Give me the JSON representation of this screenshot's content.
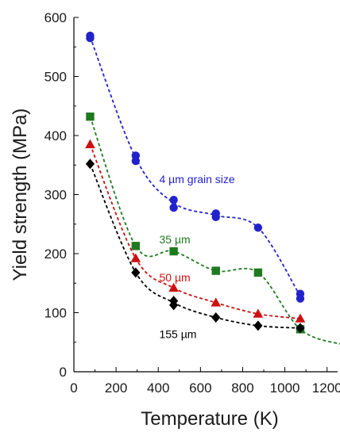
{
  "chart_data": {
    "type": "scatter",
    "title": "",
    "xlabel": "Temperature (K)",
    "ylabel": "Yield strength (MPa)",
    "xlim": [
      0,
      1250
    ],
    "ylim": [
      0,
      600
    ],
    "xticks": [
      0,
      200,
      400,
      600,
      800,
      1000,
      1200
    ],
    "yticks": [
      0,
      100,
      200,
      300,
      400,
      500,
      600
    ],
    "grid": false,
    "legend": "none",
    "series": [
      {
        "name": "4 µm grain size",
        "color": "#2222cc",
        "marker": "circle",
        "points": [
          {
            "x": 77,
            "y": 569
          },
          {
            "x": 77,
            "y": 565
          },
          {
            "x": 293,
            "y": 366
          },
          {
            "x": 293,
            "y": 357
          },
          {
            "x": 473,
            "y": 291
          },
          {
            "x": 473,
            "y": 278
          },
          {
            "x": 673,
            "y": 268
          },
          {
            "x": 673,
            "y": 262
          },
          {
            "x": 873,
            "y": 244
          },
          {
            "x": 1073,
            "y": 132
          },
          {
            "x": 1073,
            "y": 124
          }
        ],
        "curve": [
          [
            77,
            567
          ],
          [
            293,
            362
          ],
          [
            473,
            286
          ],
          [
            673,
            265
          ],
          [
            873,
            244
          ],
          [
            1073,
            128
          ]
        ]
      },
      {
        "name": "35 µm",
        "color": "#1f7a1f",
        "marker": "square",
        "points": [
          {
            "x": 77,
            "y": 432
          },
          {
            "x": 293,
            "y": 213
          },
          {
            "x": 473,
            "y": 204
          },
          {
            "x": 673,
            "y": 171
          },
          {
            "x": 873,
            "y": 168
          },
          {
            "x": 1073,
            "y": 72
          },
          {
            "x": 1273,
            "y": 46
          }
        ],
        "curve": [
          [
            77,
            432
          ],
          [
            293,
            213
          ],
          [
            473,
            204
          ],
          [
            673,
            171
          ],
          [
            873,
            168
          ],
          [
            1073,
            72
          ],
          [
            1273,
            46
          ]
        ]
      },
      {
        "name": "50 µm",
        "color": "#cc1111",
        "marker": "triangle",
        "points": [
          {
            "x": 77,
            "y": 385
          },
          {
            "x": 293,
            "y": 192
          },
          {
            "x": 473,
            "y": 142
          },
          {
            "x": 673,
            "y": 117
          },
          {
            "x": 873,
            "y": 98
          },
          {
            "x": 1073,
            "y": 90
          }
        ],
        "curve": [
          [
            77,
            385
          ],
          [
            293,
            192
          ],
          [
            473,
            142
          ],
          [
            673,
            117
          ],
          [
            873,
            98
          ],
          [
            1073,
            90
          ]
        ]
      },
      {
        "name": "155 µm",
        "color": "#000000",
        "marker": "diamond",
        "points": [
          {
            "x": 77,
            "y": 352
          },
          {
            "x": 293,
            "y": 168
          },
          {
            "x": 473,
            "y": 120
          },
          {
            "x": 473,
            "y": 113
          },
          {
            "x": 673,
            "y": 92
          },
          {
            "x": 873,
            "y": 78
          },
          {
            "x": 1073,
            "y": 74
          }
        ],
        "curve": [
          [
            77,
            352
          ],
          [
            293,
            168
          ],
          [
            473,
            117
          ],
          [
            673,
            92
          ],
          [
            873,
            78
          ],
          [
            1073,
            74
          ]
        ]
      }
    ],
    "annotations": [
      {
        "series": 0,
        "text": "4 µm grain size",
        "x": 480,
        "y": 326,
        "color": "#2222cc"
      },
      {
        "series": 1,
        "text": "35 µm",
        "x": 480,
        "y": 224,
        "color": "#1f7a1f"
      },
      {
        "series": 2,
        "text": "50 µm",
        "x": 480,
        "y": 160,
        "color": "#cc1111"
      },
      {
        "series": 3,
        "text": "155 µm",
        "x": 480,
        "y": 64,
        "color": "#000000"
      }
    ]
  }
}
